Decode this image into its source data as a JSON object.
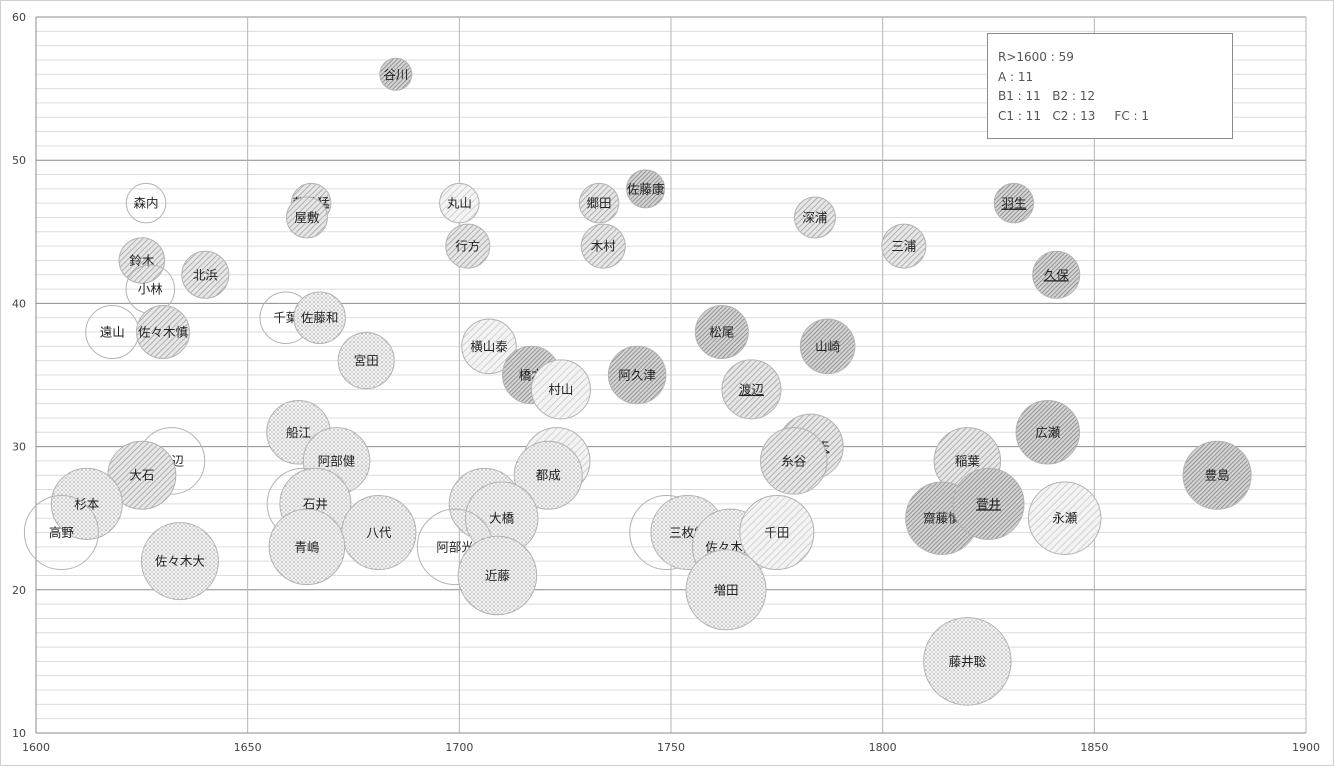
{
  "chart_data": {
    "type": "bubble",
    "title": "",
    "xlabel": "",
    "ylabel": "",
    "xlim": [
      1600,
      1900
    ],
    "ylim": [
      10,
      60
    ],
    "x_ticks": [
      "1600",
      "1650",
      "1700",
      "1750",
      "1800",
      "1850",
      "1900"
    ],
    "y_ticks": [
      "10",
      "20",
      "30",
      "40",
      "50",
      "60"
    ],
    "grid": "major and minor horizontal lines, vertical lines at x ticks",
    "legend_box": {
      "lines": [
        "R>1600 : 59",
        "A : 11",
        "B1 : 11   B2 : 12",
        "C1 : 11   C2 : 13     FC : 1"
      ],
      "placement": "top-right"
    },
    "points": [
      {
        "label": "谷川",
        "x": 1685,
        "y": 56,
        "fill": "diag-dense"
      },
      {
        "label": "森内",
        "x": 1626,
        "y": 47,
        "fill": "plain"
      },
      {
        "label": "藤井猛",
        "x": 1665,
        "y": 47,
        "fill": "diag"
      },
      {
        "label": "屋敷",
        "x": 1664,
        "y": 46,
        "fill": "diag"
      },
      {
        "label": "丸山",
        "x": 1700,
        "y": 47,
        "fill": "diag-light"
      },
      {
        "label": "郷田",
        "x": 1733,
        "y": 47,
        "fill": "diag"
      },
      {
        "label": "佐藤康",
        "x": 1744,
        "y": 48,
        "fill": "diag-dense"
      },
      {
        "label": "深浦",
        "x": 1784,
        "y": 46,
        "fill": "diag"
      },
      {
        "label": "三浦",
        "x": 1805,
        "y": 44,
        "fill": "diag"
      },
      {
        "label": "羽生",
        "x": 1831,
        "y": 47,
        "fill": "diag-dense",
        "underline": true
      },
      {
        "label": "久保",
        "x": 1841,
        "y": 42,
        "fill": "diag-dense",
        "underline": true
      },
      {
        "label": "鈴木",
        "x": 1625,
        "y": 43,
        "fill": "diag"
      },
      {
        "label": "小林",
        "x": 1627,
        "y": 41,
        "fill": "plain"
      },
      {
        "label": "北浜",
        "x": 1640,
        "y": 42,
        "fill": "diag"
      },
      {
        "label": "行方",
        "x": 1702,
        "y": 44,
        "fill": "diag"
      },
      {
        "label": "木村",
        "x": 1734,
        "y": 44,
        "fill": "diag"
      },
      {
        "label": "遠山",
        "x": 1618,
        "y": 38,
        "fill": "plain"
      },
      {
        "label": "佐々木慎",
        "x": 1630,
        "y": 38,
        "fill": "diag"
      },
      {
        "label": "千葉",
        "x": 1659,
        "y": 39,
        "fill": "plain"
      },
      {
        "label": "佐藤和",
        "x": 1667,
        "y": 39,
        "fill": "dots"
      },
      {
        "label": "宮田",
        "x": 1678,
        "y": 36,
        "fill": "dots"
      },
      {
        "label": "横山泰",
        "x": 1707,
        "y": 37,
        "fill": "diag-light"
      },
      {
        "label": "橋本",
        "x": 1717,
        "y": 35,
        "fill": "diag-dense"
      },
      {
        "label": "村山",
        "x": 1724,
        "y": 34,
        "fill": "diag-light"
      },
      {
        "label": "阿久津",
        "x": 1742,
        "y": 35,
        "fill": "diag-dense"
      },
      {
        "label": "松尾",
        "x": 1762,
        "y": 38,
        "fill": "diag-dense"
      },
      {
        "label": "渡辺",
        "x": 1769,
        "y": 34,
        "fill": "diag",
        "underline": true
      },
      {
        "label": "山崎",
        "x": 1787,
        "y": 37,
        "fill": "diag-dense"
      },
      {
        "label": "船江",
        "x": 1662,
        "y": 31,
        "fill": "dots"
      },
      {
        "label": "阿部健",
        "x": 1671,
        "y": 29,
        "fill": "dots"
      },
      {
        "label": "渡辺",
        "x": 1632,
        "y": 29,
        "fill": "plain"
      },
      {
        "label": "大石",
        "x": 1625,
        "y": 28,
        "fill": "diag"
      },
      {
        "label": "中村",
        "x": 1723,
        "y": 29,
        "fill": "diag-light",
        "underline": true
      },
      {
        "label": "都成",
        "x": 1721,
        "y": 28,
        "fill": "dots"
      },
      {
        "label": "佐藤天",
        "x": 1783,
        "y": 30,
        "fill": "diag",
        "underline": true
      },
      {
        "label": "糸谷",
        "x": 1779,
        "y": 29,
        "fill": "diag"
      },
      {
        "label": "広瀬",
        "x": 1839,
        "y": 31,
        "fill": "diag-dense"
      },
      {
        "label": "稲葉",
        "x": 1820,
        "y": 29,
        "fill": "diag"
      },
      {
        "label": "豊島",
        "x": 1879,
        "y": 28,
        "fill": "diag-dense"
      },
      {
        "label": "杉本",
        "x": 1612,
        "y": 26,
        "fill": "dots"
      },
      {
        "label": "高野",
        "x": 1606,
        "y": 24,
        "fill": "plain"
      },
      {
        "label": "黒沢",
        "x": 1663,
        "y": 26,
        "fill": "plain"
      },
      {
        "label": "石井",
        "x": 1666,
        "y": 26,
        "fill": "dots"
      },
      {
        "label": "澤田",
        "x": 1706,
        "y": 26,
        "fill": "dots"
      },
      {
        "label": "大橋",
        "x": 1710,
        "y": 25,
        "fill": "dots"
      },
      {
        "label": "高見",
        "x": 1749,
        "y": 24,
        "fill": "plain",
        "underline": true
      },
      {
        "label": "三枚堂",
        "x": 1754,
        "y": 24,
        "fill": "dots"
      },
      {
        "label": "佐々木勇",
        "x": 1764,
        "y": 23,
        "fill": "dots"
      },
      {
        "label": "千田",
        "x": 1775,
        "y": 24,
        "fill": "diag-light"
      },
      {
        "label": "齋藤慎",
        "x": 1814,
        "y": 25,
        "fill": "diag-dense"
      },
      {
        "label": "菅井",
        "x": 1825,
        "y": 26,
        "fill": "diag-dense",
        "underline": true
      },
      {
        "label": "永瀬",
        "x": 1843,
        "y": 25,
        "fill": "diag-light"
      },
      {
        "label": "八代",
        "x": 1681,
        "y": 24,
        "fill": "dots"
      },
      {
        "label": "青嶋",
        "x": 1664,
        "y": 23,
        "fill": "dots"
      },
      {
        "label": "阿部光",
        "x": 1699,
        "y": 23,
        "fill": "plain"
      },
      {
        "label": "佐々木大",
        "x": 1634,
        "y": 22,
        "fill": "dots"
      },
      {
        "label": "近藤",
        "x": 1709,
        "y": 21,
        "fill": "dots"
      },
      {
        "label": "増田",
        "x": 1763,
        "y": 20,
        "fill": "dots"
      },
      {
        "label": "藤井聡",
        "x": 1820,
        "y": 15,
        "fill": "dots"
      }
    ]
  }
}
